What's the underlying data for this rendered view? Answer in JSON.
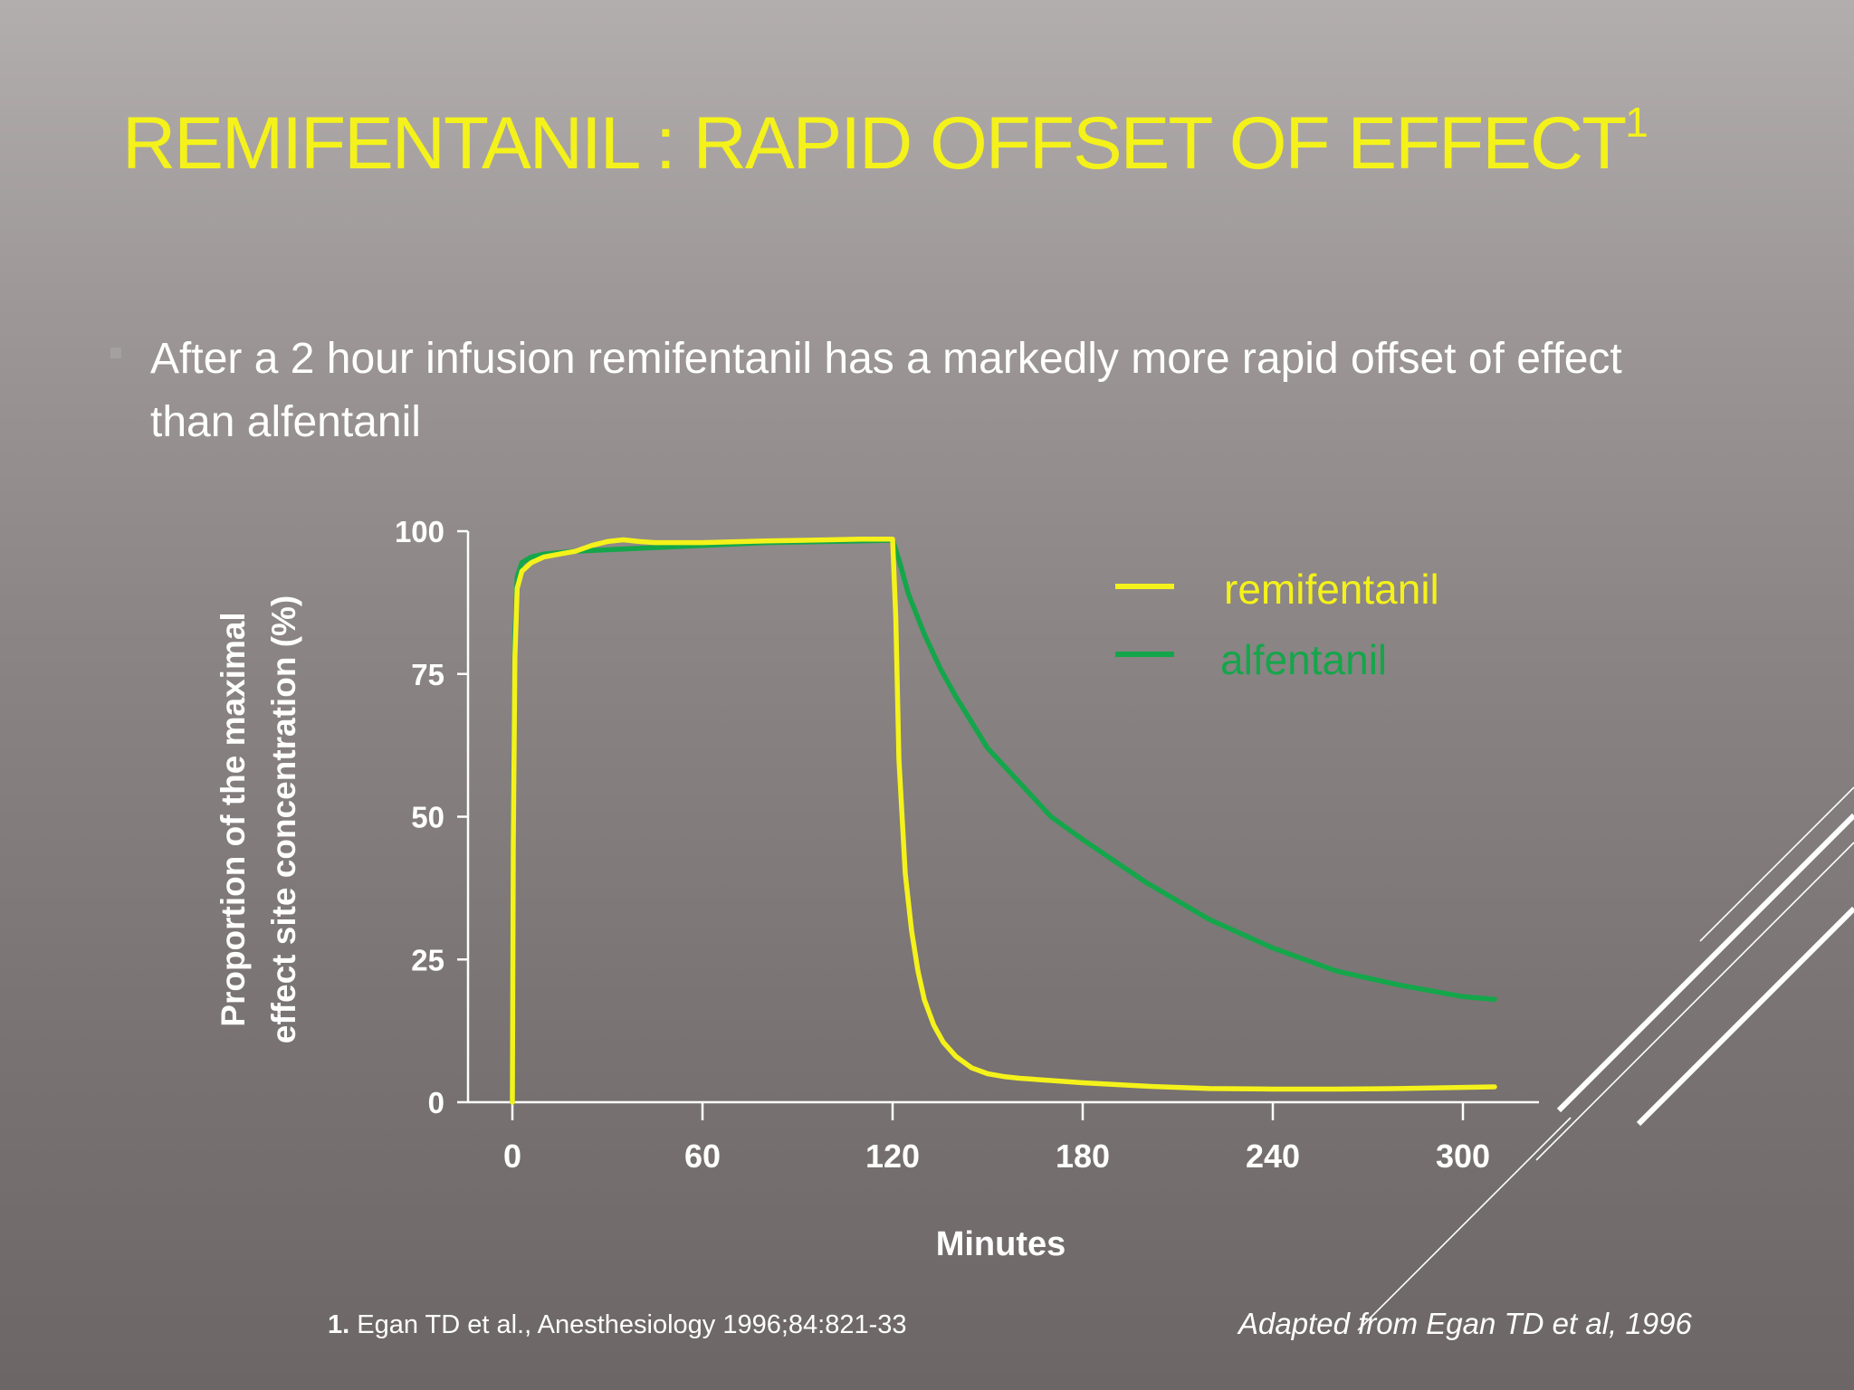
{
  "slide": {
    "title": "REMIFENTANIL :  RAPID OFFSET OF EFFECT",
    "title_superscript": "1",
    "bullet": "After a 2 hour infusion remifentanil  has a markedly more rapid offset  of effect  than alfentanil",
    "footnote_number": "1.",
    "footnote_text": "Egan TD et al., Anesthesiology  1996;84:821-33",
    "adapted_from": "Adapted from Egan TD et al, 1996"
  },
  "colors": {
    "title": "#f4f21a",
    "remifentanil": "#f4f21a",
    "alfentanil": "#14a64a",
    "axis": "#ffffff"
  },
  "chart_data": {
    "type": "line",
    "xlabel": "Minutes",
    "ylabel_lines": [
      "Proportion of the maximal",
      "effect site concentration (%)"
    ],
    "xlim": [
      -14,
      324
    ],
    "ylim": [
      0,
      100
    ],
    "xticks": [
      0,
      60,
      120,
      180,
      240,
      300
    ],
    "yticks": [
      0,
      25,
      50,
      75,
      100
    ],
    "grid": false,
    "legend_position": "top-right",
    "series": [
      {
        "name": "remifentanil",
        "color": "#f4f21a",
        "x": [
          0,
          0.3,
          0.8,
          1.5,
          3,
          6,
          10,
          15,
          20,
          25,
          30,
          35,
          40,
          45,
          50,
          60,
          80,
          100,
          110,
          118,
          120,
          121,
          122,
          124,
          126,
          128,
          130,
          133,
          136,
          140,
          145,
          150,
          155,
          160,
          170,
          180,
          200,
          220,
          240,
          260,
          280,
          300,
          310
        ],
        "y": [
          0,
          45,
          78,
          90,
          93,
          94.5,
          95.5,
          96,
          96.5,
          97.5,
          98.2,
          98.5,
          98.2,
          98,
          98,
          98,
          98.3,
          98.5,
          98.6,
          98.6,
          98.6,
          85,
          60,
          40,
          30,
          23,
          18,
          13.5,
          10.5,
          8,
          6,
          5,
          4.5,
          4.2,
          3.8,
          3.4,
          2.8,
          2.4,
          2.3,
          2.3,
          2.4,
          2.6,
          2.7
        ]
      },
      {
        "name": "alfentanil",
        "color": "#14a64a",
        "x": [
          0,
          0.3,
          0.8,
          1.5,
          3,
          6,
          10,
          20,
          40,
          60,
          80,
          100,
          110,
          118,
          120,
          122,
          125,
          130,
          135,
          140,
          150,
          160,
          170,
          180,
          200,
          220,
          240,
          260,
          280,
          300,
          310
        ],
        "y": [
          0,
          50,
          82,
          92,
          94.5,
          95.5,
          96,
          96.5,
          97,
          97.5,
          98,
          98.2,
          98.3,
          98.4,
          98.4,
          95,
          89,
          82,
          76,
          71,
          62,
          56,
          50,
          46,
          38.5,
          32,
          27,
          23,
          20.5,
          18.5,
          18
        ]
      }
    ]
  }
}
